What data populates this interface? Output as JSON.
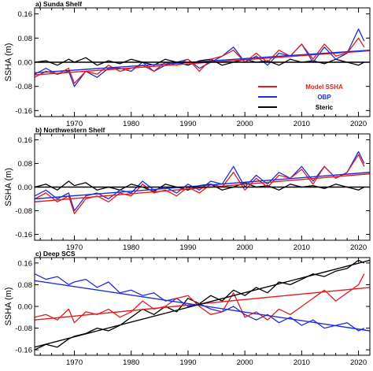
{
  "figure": {
    "colors": {
      "model": "#e41a1c",
      "obp": "#1f2fd6",
      "steric": "#000000"
    },
    "x_tick_labels": [
      "1970",
      "1980",
      "1990",
      "2000",
      "2010",
      "2020"
    ],
    "y_tick_labels": [
      "0.16",
      "0.08",
      "0.00",
      "-0.08",
      "-0.16"
    ],
    "legend": {
      "location": "right, in panel a",
      "entries": [
        {
          "key": "model",
          "label": "Model SSHA",
          "color": "#e41a1c"
        },
        {
          "key": "obp",
          "label": "OBP",
          "color": "#1f2fd6"
        },
        {
          "key": "steric",
          "label": "Steric",
          "color": "#000000"
        }
      ]
    }
  },
  "chart_data": [
    {
      "type": "line",
      "title": "a) Sunda Shelf",
      "xlabel": "",
      "ylabel": "SSHA (m)",
      "xlim": [
        1963,
        2022
      ],
      "ylim": [
        -0.18,
        0.18
      ],
      "xticks": [
        1970,
        1980,
        1990,
        2000,
        2010,
        2020
      ],
      "yticks": [
        0.16,
        0.08,
        0.0,
        -0.08,
        -0.16
      ],
      "grid": false,
      "legend": "right",
      "x": [
        1963,
        1965,
        1967,
        1969,
        1970,
        1972,
        1974,
        1976,
        1978,
        1980,
        1982,
        1984,
        1986,
        1988,
        1990,
        1992,
        1994,
        1996,
        1998,
        2000,
        2002,
        2004,
        2006,
        2008,
        2010,
        2012,
        2014,
        2016,
        2018,
        2020,
        2021
      ],
      "series": [
        {
          "key": "model",
          "name": "Model SSHA",
          "values": [
            -0.05,
            -0.03,
            -0.04,
            -0.02,
            -0.07,
            -0.03,
            -0.04,
            -0.01,
            -0.03,
            -0.02,
            -0.01,
            -0.03,
            0.0,
            -0.01,
            0.01,
            -0.03,
            0.01,
            0.02,
            0.04,
            0.0,
            0.03,
            0.0,
            0.04,
            0.02,
            0.06,
            0.01,
            0.06,
            0.02,
            0.03,
            0.08,
            0.05
          ]
        },
        {
          "key": "obp",
          "name": "OBP",
          "values": [
            -0.04,
            -0.02,
            -0.04,
            -0.03,
            -0.08,
            -0.03,
            -0.05,
            -0.02,
            -0.02,
            -0.03,
            0.0,
            -0.03,
            -0.01,
            0.0,
            0.01,
            -0.02,
            0.0,
            0.02,
            0.05,
            0.0,
            0.02,
            -0.01,
            0.03,
            0.02,
            0.06,
            0.0,
            0.05,
            0.01,
            0.03,
            0.11,
            0.07
          ]
        },
        {
          "key": "steric",
          "name": "Steric",
          "values": [
            0.0,
            0.005,
            -0.01,
            0.01,
            0.0,
            0.015,
            -0.01,
            0.005,
            -0.005,
            0.01,
            0.0,
            -0.01,
            0.01,
            0.0,
            -0.01,
            0.005,
            0.01,
            -0.01,
            0.0,
            0.01,
            0.0,
            0.005,
            -0.01,
            0.01,
            0.0,
            0.005,
            -0.005,
            0.01,
            0.0,
            -0.01,
            0.0
          ]
        }
      ],
      "trends": [
        {
          "key": "model",
          "from": [
            1963,
            -0.042
          ],
          "to": [
            2022,
            0.038
          ]
        },
        {
          "key": "obp",
          "from": [
            1963,
            -0.035
          ],
          "to": [
            2022,
            0.04
          ]
        },
        {
          "key": "steric",
          "from": [
            1963,
            0.0
          ],
          "to": [
            2022,
            0.0
          ]
        }
      ]
    },
    {
      "type": "line",
      "title": "b) Northwestern Shelf",
      "xlabel": "",
      "ylabel": "SSHA (m)",
      "xlim": [
        1963,
        2022
      ],
      "ylim": [
        -0.18,
        0.18
      ],
      "xticks": [
        1970,
        1980,
        1990,
        2000,
        2010,
        2020
      ],
      "yticks": [
        0.16,
        0.08,
        0.0,
        -0.08,
        -0.16
      ],
      "grid": false,
      "x": [
        1963,
        1965,
        1967,
        1969,
        1970,
        1972,
        1974,
        1976,
        1978,
        1980,
        1982,
        1984,
        1986,
        1988,
        1990,
        1992,
        1994,
        1996,
        1998,
        2000,
        2002,
        2004,
        2006,
        2008,
        2010,
        2012,
        2014,
        2016,
        2018,
        2020,
        2021
      ],
      "series": [
        {
          "key": "model",
          "name": "Model SSHA",
          "values": [
            -0.04,
            -0.02,
            -0.05,
            -0.03,
            -0.09,
            -0.04,
            -0.03,
            -0.05,
            -0.02,
            -0.03,
            0.01,
            -0.02,
            -0.01,
            -0.03,
            0.0,
            -0.02,
            0.01,
            0.0,
            0.05,
            -0.01,
            0.03,
            0.0,
            0.04,
            0.03,
            0.06,
            0.01,
            0.07,
            0.03,
            0.05,
            0.11,
            0.07
          ]
        },
        {
          "key": "obp",
          "name": "OBP",
          "values": [
            -0.03,
            -0.01,
            -0.04,
            -0.02,
            -0.08,
            -0.03,
            -0.02,
            -0.04,
            -0.01,
            -0.02,
            0.02,
            -0.01,
            0.0,
            -0.02,
            0.01,
            -0.01,
            0.02,
            0.01,
            0.07,
            0.0,
            0.04,
            0.01,
            0.05,
            0.03,
            0.07,
            0.02,
            0.07,
            0.03,
            0.05,
            0.12,
            0.08
          ]
        },
        {
          "key": "steric",
          "name": "Steric",
          "values": [
            0.0,
            0.01,
            -0.01,
            0.02,
            0.005,
            0.015,
            -0.01,
            0.0,
            -0.01,
            0.01,
            0.0,
            -0.015,
            0.01,
            0.0,
            -0.01,
            0.005,
            0.01,
            -0.01,
            0.0,
            0.015,
            0.0,
            0.005,
            -0.01,
            0.01,
            0.0,
            0.005,
            -0.005,
            0.01,
            0.0,
            -0.01,
            0.0
          ]
        }
      ],
      "trends": [
        {
          "key": "model",
          "from": [
            1963,
            -0.05
          ],
          "to": [
            2022,
            0.045
          ]
        },
        {
          "key": "obp",
          "from": [
            1963,
            -0.04
          ],
          "to": [
            2022,
            0.05
          ]
        },
        {
          "key": "steric",
          "from": [
            1963,
            0.0
          ],
          "to": [
            2022,
            0.0
          ]
        }
      ]
    },
    {
      "type": "line",
      "title": "c) Deep SCS",
      "xlabel": "",
      "ylabel": "SSHA (m)",
      "xlim": [
        1963,
        2022
      ],
      "ylim": [
        -0.18,
        0.18
      ],
      "xticks": [
        1970,
        1980,
        1990,
        2000,
        2010,
        2020
      ],
      "yticks": [
        0.16,
        0.08,
        0.0,
        -0.08,
        -0.16
      ],
      "grid": false,
      "x": [
        1963,
        1965,
        1967,
        1969,
        1970,
        1972,
        1974,
        1976,
        1978,
        1980,
        1982,
        1984,
        1986,
        1988,
        1990,
        1992,
        1994,
        1996,
        1998,
        2000,
        2002,
        2004,
        2006,
        2008,
        2010,
        2012,
        2014,
        2016,
        2018,
        2020,
        2021
      ],
      "series": [
        {
          "key": "model",
          "name": "Model SSHA",
          "values": [
            -0.04,
            -0.03,
            -0.05,
            -0.01,
            -0.06,
            -0.02,
            -0.03,
            -0.01,
            -0.04,
            -0.02,
            0.02,
            -0.01,
            0.0,
            0.03,
            0.04,
            0.0,
            -0.03,
            -0.02,
            0.05,
            -0.04,
            -0.02,
            -0.05,
            -0.01,
            -0.03,
            0.0,
            0.03,
            0.06,
            0.02,
            0.05,
            0.08,
            0.12
          ]
        },
        {
          "key": "obp",
          "name": "OBP",
          "values": [
            0.12,
            0.1,
            0.11,
            0.08,
            0.09,
            0.1,
            0.07,
            0.09,
            0.05,
            0.06,
            0.04,
            0.05,
            0.02,
            0.03,
            0.0,
            0.01,
            -0.01,
            -0.02,
            0.0,
            -0.03,
            -0.05,
            -0.03,
            -0.06,
            -0.04,
            -0.07,
            -0.05,
            -0.08,
            -0.07,
            -0.06,
            -0.09,
            -0.08
          ]
        },
        {
          "key": "steric",
          "name": "Steric",
          "values": [
            -0.16,
            -0.14,
            -0.15,
            -0.12,
            -0.11,
            -0.1,
            -0.08,
            -0.09,
            -0.07,
            -0.04,
            -0.01,
            -0.03,
            0.0,
            -0.02,
            0.03,
            0.01,
            0.04,
            0.02,
            0.06,
            0.04,
            0.07,
            0.05,
            0.09,
            0.08,
            0.1,
            0.12,
            0.11,
            0.13,
            0.14,
            0.17,
            0.16
          ]
        }
      ],
      "trends": [
        {
          "key": "model",
          "from": [
            1963,
            -0.05
          ],
          "to": [
            2022,
            0.07
          ]
        },
        {
          "key": "obp",
          "from": [
            1963,
            0.095
          ],
          "to": [
            2022,
            -0.09
          ]
        },
        {
          "key": "steric",
          "from": [
            1963,
            -0.15
          ],
          "to": [
            2022,
            0.17
          ]
        }
      ]
    }
  ]
}
